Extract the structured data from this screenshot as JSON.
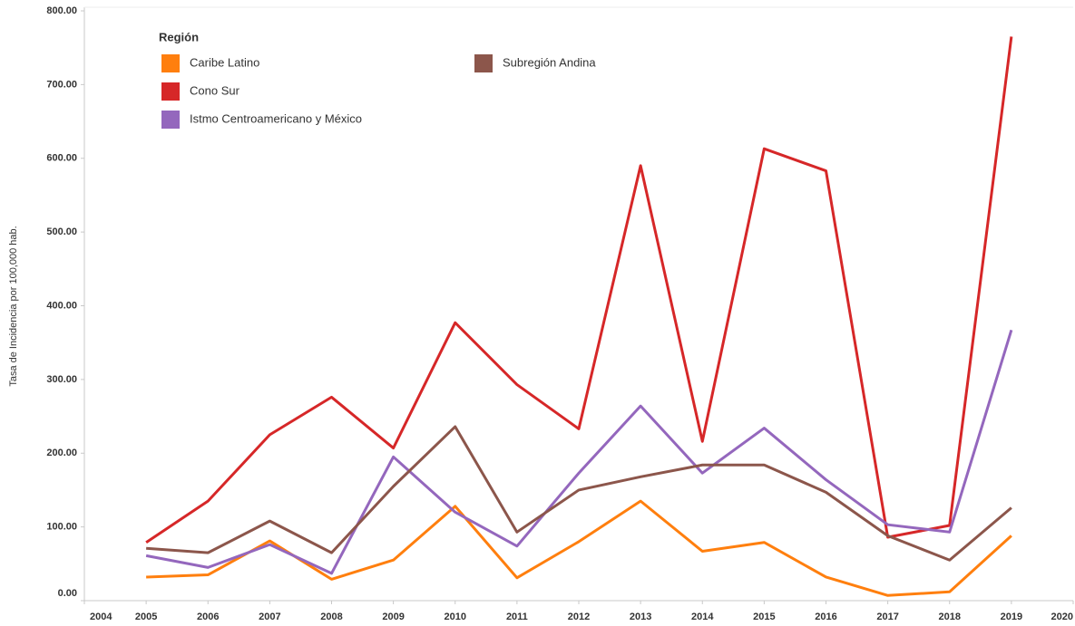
{
  "chart_data": {
    "type": "line",
    "y_label": "Tasa de Incidencia por 100,000 hab.",
    "legend_title": "Región",
    "x": [
      2005,
      2006,
      2007,
      2008,
      2009,
      2010,
      2011,
      2012,
      2013,
      2014,
      2015,
      2016,
      2017,
      2018,
      2019
    ],
    "xlim": [
      2004,
      2020
    ],
    "xticks": [
      2004,
      2005,
      2006,
      2007,
      2008,
      2009,
      2010,
      2011,
      2012,
      2013,
      2014,
      2015,
      2016,
      2017,
      2018,
      2019,
      2020
    ],
    "ylim": [
      0,
      800
    ],
    "yticks": [
      {
        "value": 0,
        "label": "0.00"
      },
      {
        "value": 100,
        "label": "100.00"
      },
      {
        "value": 200,
        "label": "200.00"
      },
      {
        "value": 300,
        "label": "300.00"
      },
      {
        "value": 400,
        "label": "400.00"
      },
      {
        "value": 500,
        "label": "500.00"
      },
      {
        "value": 600,
        "label": "600.00"
      },
      {
        "value": 700,
        "label": "700.00"
      },
      {
        "value": 800,
        "label": "800.00"
      }
    ],
    "grid": false,
    "series": [
      {
        "name": "Caribe Latino",
        "color": "#ff7f0e",
        "values": [
          32,
          35,
          81,
          29,
          55,
          128,
          31,
          80,
          135,
          67,
          79,
          32,
          7,
          12,
          88
        ]
      },
      {
        "name": "Cono Sur",
        "color": "#d62728",
        "values": [
          79,
          135,
          225,
          276,
          207,
          377,
          293,
          233,
          590,
          216,
          613,
          583,
          86,
          102,
          765
        ]
      },
      {
        "name": "Istmo Centroamericano y México",
        "color": "#9467bd",
        "values": [
          61,
          45,
          76,
          37,
          195,
          120,
          74,
          173,
          264,
          173,
          234,
          164,
          103,
          93,
          367
        ]
      },
      {
        "name": "Subregión Andina",
        "color": "#8c564b",
        "values": [
          71,
          65,
          108,
          65,
          155,
          236,
          93,
          150,
          168,
          184,
          184,
          147,
          88,
          55,
          126
        ]
      }
    ]
  }
}
